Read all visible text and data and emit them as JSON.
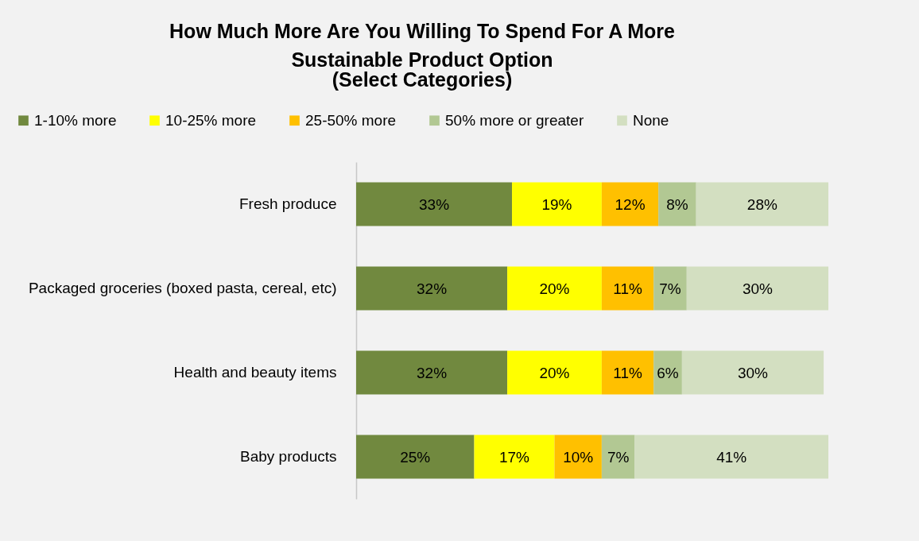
{
  "chart_data": {
    "type": "bar",
    "orientation": "horizontal",
    "stacked": true,
    "legend": "top",
    "grid": false,
    "title": "How Much More Are You Willing To Spend For A More Sustainable Product Option",
    "subtitle": "(Select Categories)",
    "categories": [
      "Fresh produce",
      "Packaged groceries (boxed pasta, cereal, etc)",
      "Health and beauty items",
      "Baby products"
    ],
    "series": [
      {
        "name": "1-10% more",
        "color": "#71893f",
        "values": [
          33,
          32,
          32,
          25
        ],
        "value_labels": [
          "33%",
          "32%",
          "32%",
          "25%"
        ]
      },
      {
        "name": "10-25% more",
        "color": "#ffff00",
        "values": [
          19,
          20,
          20,
          17
        ],
        "value_labels": [
          "19%",
          "20%",
          "20%",
          "17%"
        ]
      },
      {
        "name": "25-50% more",
        "color": "#ffc000",
        "values": [
          12,
          11,
          11,
          10
        ],
        "value_labels": [
          "12%",
          "11%",
          "11%",
          "10%"
        ]
      },
      {
        "name": "50% more or greater",
        "color": "#b2c893",
        "values": [
          8,
          7,
          6,
          7
        ],
        "value_labels": [
          "8%",
          "7%",
          "6%",
          "7%"
        ]
      },
      {
        "name": "None",
        "color": "#d3dfc1",
        "values": [
          28,
          30,
          30,
          41
        ],
        "value_labels": [
          "28%",
          "30%",
          "30%",
          "41%"
        ]
      }
    ]
  }
}
